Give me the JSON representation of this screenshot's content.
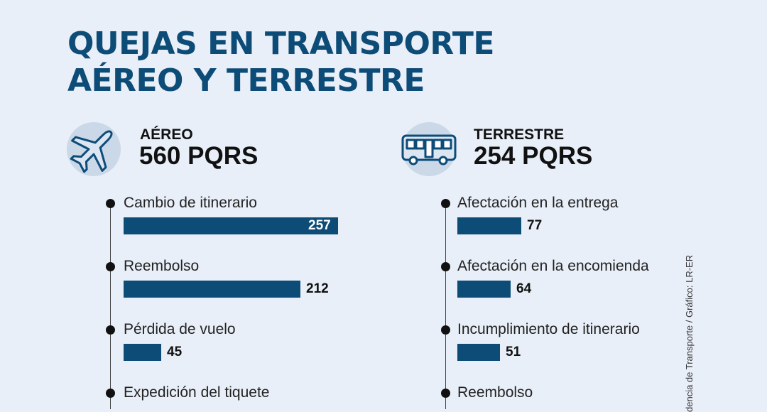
{
  "title_lines": [
    "QUEJAS EN TRANSPORTE",
    "AÉREO Y TERRESTRE"
  ],
  "sections": {
    "aereo": {
      "label": "AÉREO",
      "total": "560 PQRS",
      "icon": "airplane-icon"
    },
    "terrestre": {
      "label": "TERRESTRE",
      "total": "254 PQRS",
      "icon": "bus-icon"
    }
  },
  "source": "dencia de Transporte / Gráfico: LR-ER",
  "colors": {
    "background": "#e8eff8",
    "accent": "#0e4c78",
    "icon_circle": "#cbd8e8"
  },
  "chart_data": [
    {
      "type": "bar",
      "title": "AÉREO",
      "subtitle": "560 PQRS",
      "categories": [
        "Cambio de itinerario",
        "Reembolso",
        "Pérdida de vuelo",
        "Expedición del tiquete"
      ],
      "values": [
        257,
        212,
        45,
        null
      ],
      "xlim": [
        0,
        257
      ]
    },
    {
      "type": "bar",
      "title": "TERRESTRE",
      "subtitle": "254 PQRS",
      "categories": [
        "Afectación en la entrega",
        "Afectación en la encomienda",
        "Incumplimiento de itinerario",
        "Reembolso"
      ],
      "values": [
        77,
        64,
        51,
        null
      ],
      "xlim": [
        0,
        257
      ]
    }
  ]
}
